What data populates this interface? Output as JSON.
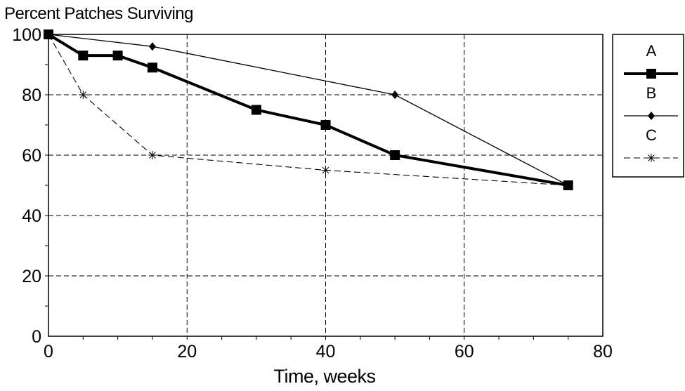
{
  "chart_data": {
    "type": "line",
    "title": "Percent Patches Surviving",
    "xlabel": "Time, weeks",
    "ylabel": "",
    "xlim": [
      0,
      80
    ],
    "ylim": [
      0,
      100
    ],
    "xticks": [
      0,
      20,
      40,
      60,
      80
    ],
    "yticks": [
      0,
      20,
      40,
      60,
      80,
      100
    ],
    "x_minor_step": 5,
    "y_minor_step": 10,
    "grid": true,
    "legend_position": "outside-right-top",
    "series": [
      {
        "name": "A",
        "marker": "square",
        "line_style": "solid-thick",
        "color": "#000000",
        "points": [
          [
            0,
            100
          ],
          [
            5,
            93
          ],
          [
            10,
            93
          ],
          [
            15,
            89
          ],
          [
            30,
            75
          ],
          [
            40,
            70
          ],
          [
            50,
            60
          ],
          [
            75,
            50
          ]
        ]
      },
      {
        "name": "B",
        "marker": "diamond",
        "line_style": "solid-thin",
        "color": "#000000",
        "points": [
          [
            0,
            100
          ],
          [
            15,
            96
          ],
          [
            50,
            80
          ],
          [
            75,
            50
          ]
        ]
      },
      {
        "name": "C",
        "marker": "asterisk",
        "line_style": "dashed",
        "color": "#000000",
        "points": [
          [
            0,
            100
          ],
          [
            5,
            80
          ],
          [
            15,
            60
          ],
          [
            40,
            55
          ],
          [
            75,
            50
          ]
        ]
      }
    ]
  }
}
